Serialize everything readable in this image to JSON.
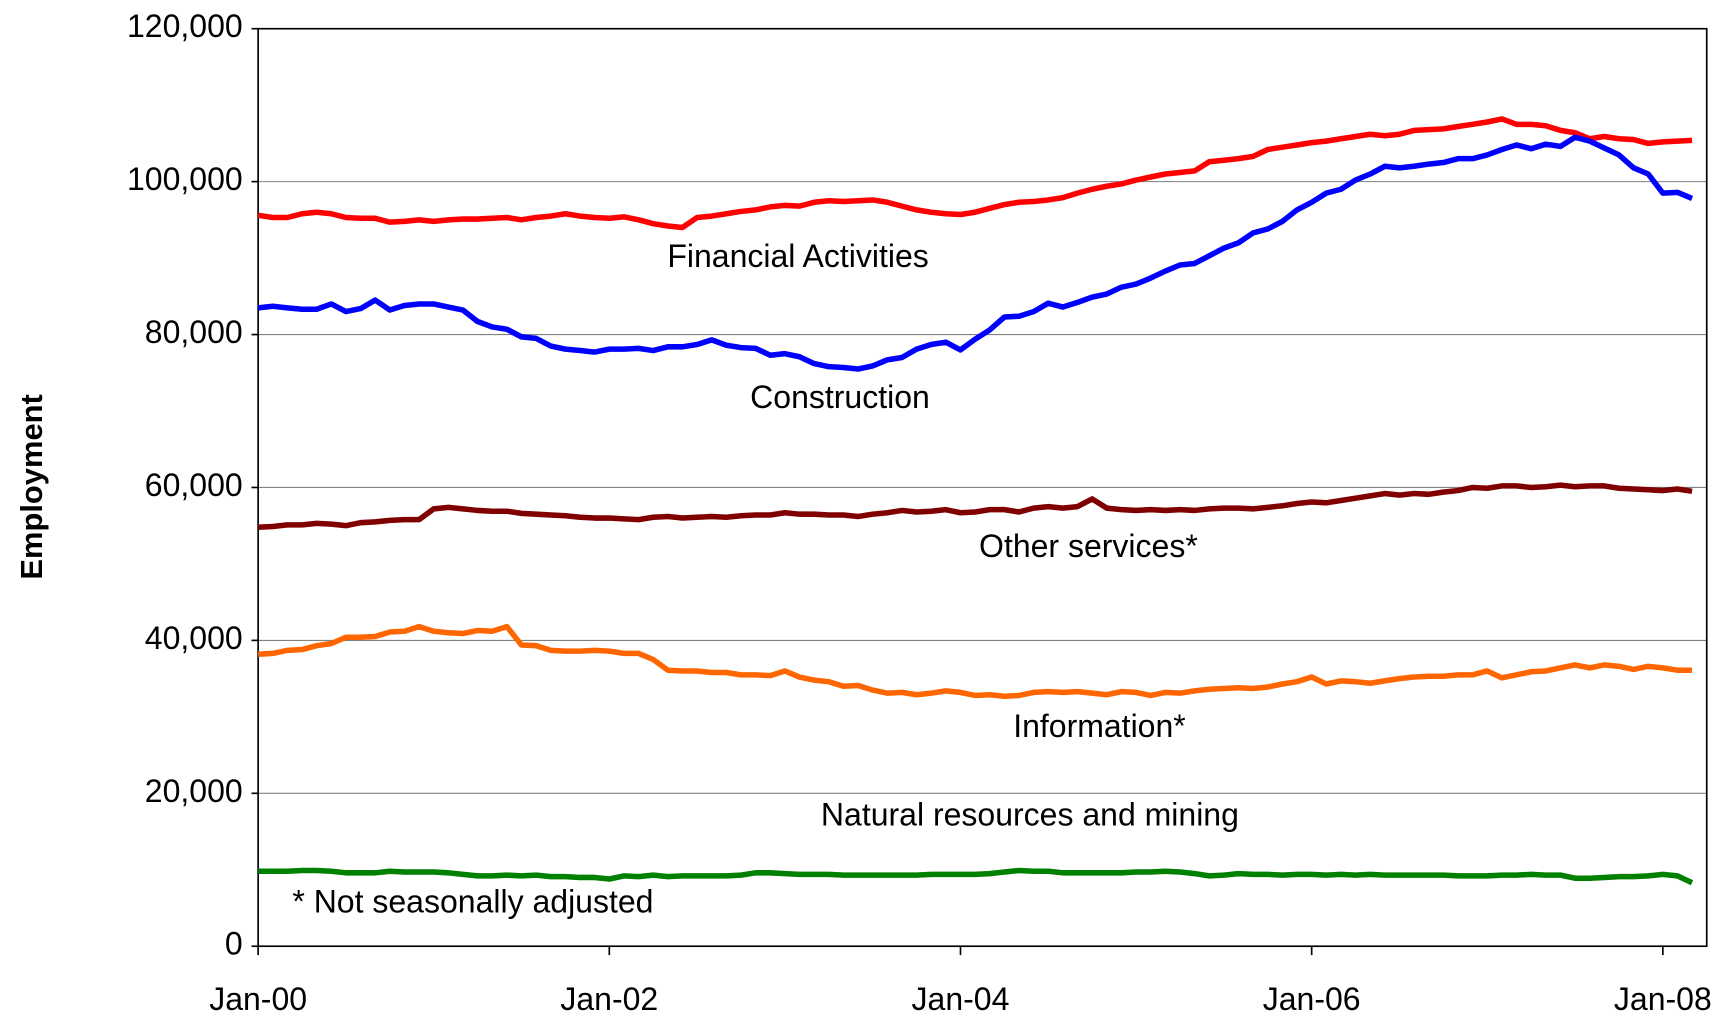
{
  "chart_data": {
    "type": "line",
    "y_label": "Employment",
    "annotations": [
      "Financial Activities",
      "Construction",
      "Other services*",
      "Information*",
      "Natural resources and mining",
      "* Not seasonally adjusted"
    ],
    "x": [
      0,
      1,
      2,
      3,
      4,
      5,
      6,
      7,
      8,
      9,
      10,
      11,
      12,
      13,
      14,
      15,
      16,
      17,
      18,
      19,
      20,
      21,
      22,
      23,
      24,
      25,
      26,
      27,
      28,
      29,
      30,
      31,
      32,
      33,
      34,
      35,
      36,
      37,
      38,
      39,
      40,
      41,
      42,
      43,
      44,
      45,
      46,
      47,
      48,
      49,
      50,
      51,
      52,
      53,
      54,
      55,
      56,
      57,
      58,
      59,
      60,
      61,
      62,
      63,
      64,
      65,
      66,
      67,
      68,
      69,
      70,
      71,
      72,
      73,
      74,
      75,
      76,
      77,
      78,
      79,
      80,
      81,
      82,
      83,
      84,
      85,
      86,
      87,
      88,
      89,
      90,
      91,
      92,
      93,
      94,
      95,
      96,
      97,
      98
    ],
    "xlim": [
      0,
      99
    ],
    "xticks": [
      {
        "value": 0,
        "label": "Jan-00"
      },
      {
        "value": 24,
        "label": "Jan-02"
      },
      {
        "value": 48,
        "label": "Jan-04"
      },
      {
        "value": 72,
        "label": "Jan-06"
      },
      {
        "value": 96,
        "label": "Jan-08"
      }
    ],
    "ylim": [
      0,
      120000
    ],
    "yticks": [
      0,
      {
        "value": 20000,
        "label": "20,000"
      },
      {
        "value": 40000,
        "label": "40,000"
      },
      {
        "value": 60000,
        "label": "60,000"
      },
      {
        "value": 80000,
        "label": "80,000"
      },
      {
        "value": 100000,
        "label": "100,000"
      },
      {
        "value": 120000,
        "label": "120,000"
      }
    ],
    "grid": true,
    "series": [
      {
        "name": "Financial Activities",
        "color": "#ff0000",
        "values": [
          95600,
          95300,
          95300,
          95800,
          96000,
          95800,
          95300,
          95200,
          95200,
          94700,
          94800,
          95000,
          94800,
          95000,
          95100,
          95100,
          95200,
          95300,
          95000,
          95300,
          95500,
          95800,
          95500,
          95300,
          95200,
          95400,
          95000,
          94500,
          94200,
          94000,
          95300,
          95500,
          95800,
          96100,
          96300,
          96700,
          96900,
          96800,
          97300,
          97500,
          97400,
          97500,
          97600,
          97300,
          96800,
          96300,
          96000,
          95800,
          95700,
          96000,
          96500,
          97000,
          97300,
          97400,
          97600,
          97900,
          98500,
          99000,
          99400,
          99700,
          100200,
          100600,
          101000,
          101200,
          101400,
          102600,
          102800,
          103000,
          103300,
          104200,
          104500,
          104800,
          105100,
          105300,
          105600,
          105900,
          106200,
          106000,
          106200,
          106700,
          106800,
          106900,
          107200,
          107500,
          107800,
          108200,
          107500,
          107500,
          107300,
          106700,
          106400,
          105600,
          105900,
          105600,
          105500,
          105000,
          105200,
          105300,
          105400
        ]
      },
      {
        "name": "Construction",
        "color": "#0000ff",
        "values": [
          83500,
          83700,
          83500,
          83300,
          83300,
          84000,
          83000,
          83400,
          84500,
          83200,
          83800,
          84000,
          84000,
          83600,
          83200,
          81700,
          81000,
          80700,
          79700,
          79500,
          78500,
          78100,
          77900,
          77700,
          78100,
          78100,
          78200,
          77900,
          78400,
          78400,
          78700,
          79300,
          78600,
          78300,
          78200,
          77300,
          77500,
          77100,
          76200,
          75800,
          75700,
          75500,
          75900,
          76700,
          77000,
          78100,
          78700,
          79000,
          78000,
          79400,
          80600,
          82300,
          82400,
          83000,
          84100,
          83600,
          84200,
          84900,
          85300,
          86200,
          86600,
          87400,
          88300,
          89100,
          89300,
          90300,
          91300,
          92000,
          93300,
          93800,
          94800,
          96300,
          97300,
          98500,
          99000,
          100200,
          101000,
          102000,
          101800,
          102000,
          102300,
          102500,
          103000,
          103000,
          103500,
          104200,
          104800,
          104300,
          104900,
          104600,
          105800,
          105300,
          104400,
          103500,
          101800,
          101000,
          98500,
          98600,
          97800
        ]
      },
      {
        "name": "Other services*",
        "color": "#800000",
        "values": [
          54800,
          54900,
          55100,
          55100,
          55300,
          55200,
          55000,
          55400,
          55500,
          55700,
          55800,
          55800,
          57200,
          57400,
          57200,
          57000,
          56900,
          56900,
          56600,
          56500,
          56400,
          56300,
          56100,
          56000,
          56000,
          55900,
          55800,
          56100,
          56200,
          56000,
          56100,
          56200,
          56100,
          56300,
          56400,
          56400,
          56700,
          56500,
          56500,
          56400,
          56400,
          56200,
          56500,
          56700,
          57000,
          56800,
          56900,
          57100,
          56700,
          56800,
          57100,
          57100,
          56800,
          57300,
          57500,
          57300,
          57500,
          58500,
          57300,
          57100,
          57000,
          57100,
          57000,
          57100,
          57000,
          57200,
          57300,
          57300,
          57200,
          57400,
          57600,
          57900,
          58100,
          58000,
          58300,
          58600,
          58900,
          59200,
          59000,
          59200,
          59100,
          59400,
          59600,
          60000,
          59900,
          60200,
          60200,
          60000,
          60100,
          60300,
          60100,
          60200,
          60200,
          59900,
          59800,
          59700,
          59600,
          59800,
          59500
        ]
      },
      {
        "name": "Information*",
        "color": "#ff6600",
        "values": [
          38200,
          38300,
          38700,
          38800,
          39300,
          39600,
          40400,
          40400,
          40500,
          41100,
          41200,
          41800,
          41200,
          41000,
          40900,
          41300,
          41200,
          41800,
          39400,
          39300,
          38700,
          38600,
          38600,
          38700,
          38600,
          38300,
          38300,
          37500,
          36100,
          36000,
          36000,
          35800,
          35800,
          35500,
          35500,
          35400,
          36000,
          35200,
          34800,
          34600,
          34000,
          34100,
          33500,
          33100,
          33200,
          32900,
          33100,
          33400,
          33200,
          32800,
          32900,
          32700,
          32800,
          33200,
          33300,
          33200,
          33300,
          33100,
          32900,
          33300,
          33200,
          32800,
          33200,
          33100,
          33400,
          33600,
          33700,
          33800,
          33700,
          33900,
          34300,
          34600,
          35200,
          34300,
          34700,
          34600,
          34400,
          34700,
          35000,
          35200,
          35300,
          35300,
          35500,
          35500,
          36000,
          35100,
          35500,
          35900,
          36000,
          36400,
          36800,
          36400,
          36800,
          36600,
          36200,
          36600,
          36400,
          36100,
          36100
        ]
      },
      {
        "name": "Natural resources and mining",
        "color": "#008000",
        "values": [
          9800,
          9800,
          9800,
          9900,
          9900,
          9800,
          9600,
          9600,
          9600,
          9800,
          9700,
          9700,
          9700,
          9600,
          9400,
          9200,
          9200,
          9300,
          9200,
          9300,
          9100,
          9100,
          9000,
          9000,
          8800,
          9200,
          9100,
          9300,
          9100,
          9200,
          9200,
          9200,
          9200,
          9300,
          9600,
          9600,
          9500,
          9400,
          9400,
          9400,
          9300,
          9300,
          9300,
          9300,
          9300,
          9300,
          9400,
          9400,
          9400,
          9400,
          9500,
          9700,
          9900,
          9800,
          9800,
          9600,
          9600,
          9600,
          9600,
          9600,
          9700,
          9700,
          9800,
          9700,
          9500,
          9200,
          9300,
          9500,
          9400,
          9400,
          9300,
          9400,
          9400,
          9300,
          9400,
          9300,
          9400,
          9300,
          9300,
          9300,
          9300,
          9300,
          9200,
          9200,
          9200,
          9300,
          9300,
          9400,
          9300,
          9300,
          8900,
          8900,
          9000,
          9100,
          9100,
          9200,
          9400,
          9200,
          8300
        ]
      }
    ]
  }
}
